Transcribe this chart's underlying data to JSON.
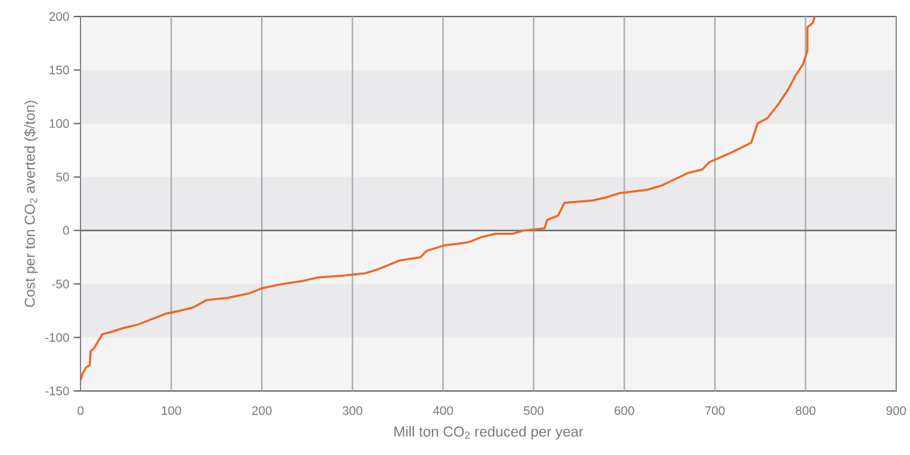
{
  "chart_data": {
    "type": "line",
    "xlabel": "Mill ton CO$_{2}$ reduced per year",
    "ylabel": "Cost per ton CO$_{2}$ averted ($/ton)",
    "x": [
      0,
      2,
      6,
      10,
      11,
      15,
      19,
      24,
      33,
      48,
      63,
      78,
      93,
      109,
      124,
      139,
      162,
      185,
      200,
      223,
      246,
      261,
      291,
      314,
      329,
      352,
      375,
      382,
      401,
      428,
      443,
      458,
      477,
      489,
      512,
      515,
      527,
      534,
      565,
      580,
      595,
      625,
      641,
      656,
      671,
      686,
      694,
      716,
      740,
      747,
      758,
      770,
      781,
      789,
      797,
      802,
      802,
      808,
      810
    ],
    "series": [
      {
        "color": "#f26522",
        "values": [
          -140,
          -134,
          -128,
          -126,
          -113,
          -110,
          -104,
          -97,
          -95,
          -91,
          -88,
          -83,
          -78,
          -75,
          -72,
          -65,
          -63,
          -59,
          -54,
          -50,
          -47,
          -44,
          -42,
          -40,
          -36,
          -28,
          -25,
          -19,
          -14,
          -11,
          -6,
          -3,
          -3,
          0,
          2,
          10,
          14,
          26,
          28,
          31,
          35,
          38,
          42,
          48,
          54,
          57,
          64,
          72,
          82,
          100,
          105,
          118,
          132,
          145,
          155,
          168,
          190,
          194,
          200
        ]
      }
    ],
    "xlim": [
      0,
      900
    ],
    "xticks": [
      0,
      100,
      200,
      300,
      400,
      500,
      600,
      700,
      800,
      900
    ],
    "ylim": [
      -150,
      200
    ],
    "yticks": [
      -150,
      -100,
      -50,
      0,
      50,
      100,
      150,
      200
    ],
    "grid": true,
    "ref_lines": [
      {
        "axis": "y",
        "value": 0,
        "color": "#6d6e71"
      }
    ],
    "marker": "none",
    "line_style": "solid"
  }
}
